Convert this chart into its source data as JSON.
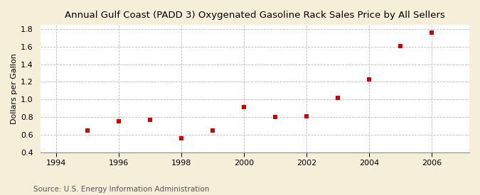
{
  "title": "Annual Gulf Coast (PADD 3) Oxygenated Gasoline Rack Sales Price by All Sellers",
  "ylabel": "Dollars per Gallon",
  "source": "Source: U.S. Energy Information Administration",
  "years": [
    1995,
    1996,
    1997,
    1998,
    1999,
    2000,
    2001,
    2002,
    2003,
    2004,
    2005,
    2006
  ],
  "values": [
    0.65,
    0.75,
    0.77,
    0.56,
    0.65,
    0.91,
    0.8,
    0.81,
    1.02,
    1.23,
    1.61,
    1.76
  ],
  "xlim": [
    1993.5,
    2007.2
  ],
  "ylim": [
    0.4,
    1.85
  ],
  "xticks": [
    1994,
    1996,
    1998,
    2000,
    2002,
    2004,
    2006
  ],
  "yticks": [
    0.4,
    0.6,
    0.8,
    1.0,
    1.2,
    1.4,
    1.6,
    1.8
  ],
  "marker_color": "#cc0000",
  "marker": "s",
  "marker_size": 16,
  "bg_outer": "#f5eed9",
  "bg_plot": "#ffffff",
  "grid_color": "#bbbbbb",
  "title_fontsize": 9.5,
  "label_fontsize": 8,
  "tick_fontsize": 8,
  "source_fontsize": 7.5
}
